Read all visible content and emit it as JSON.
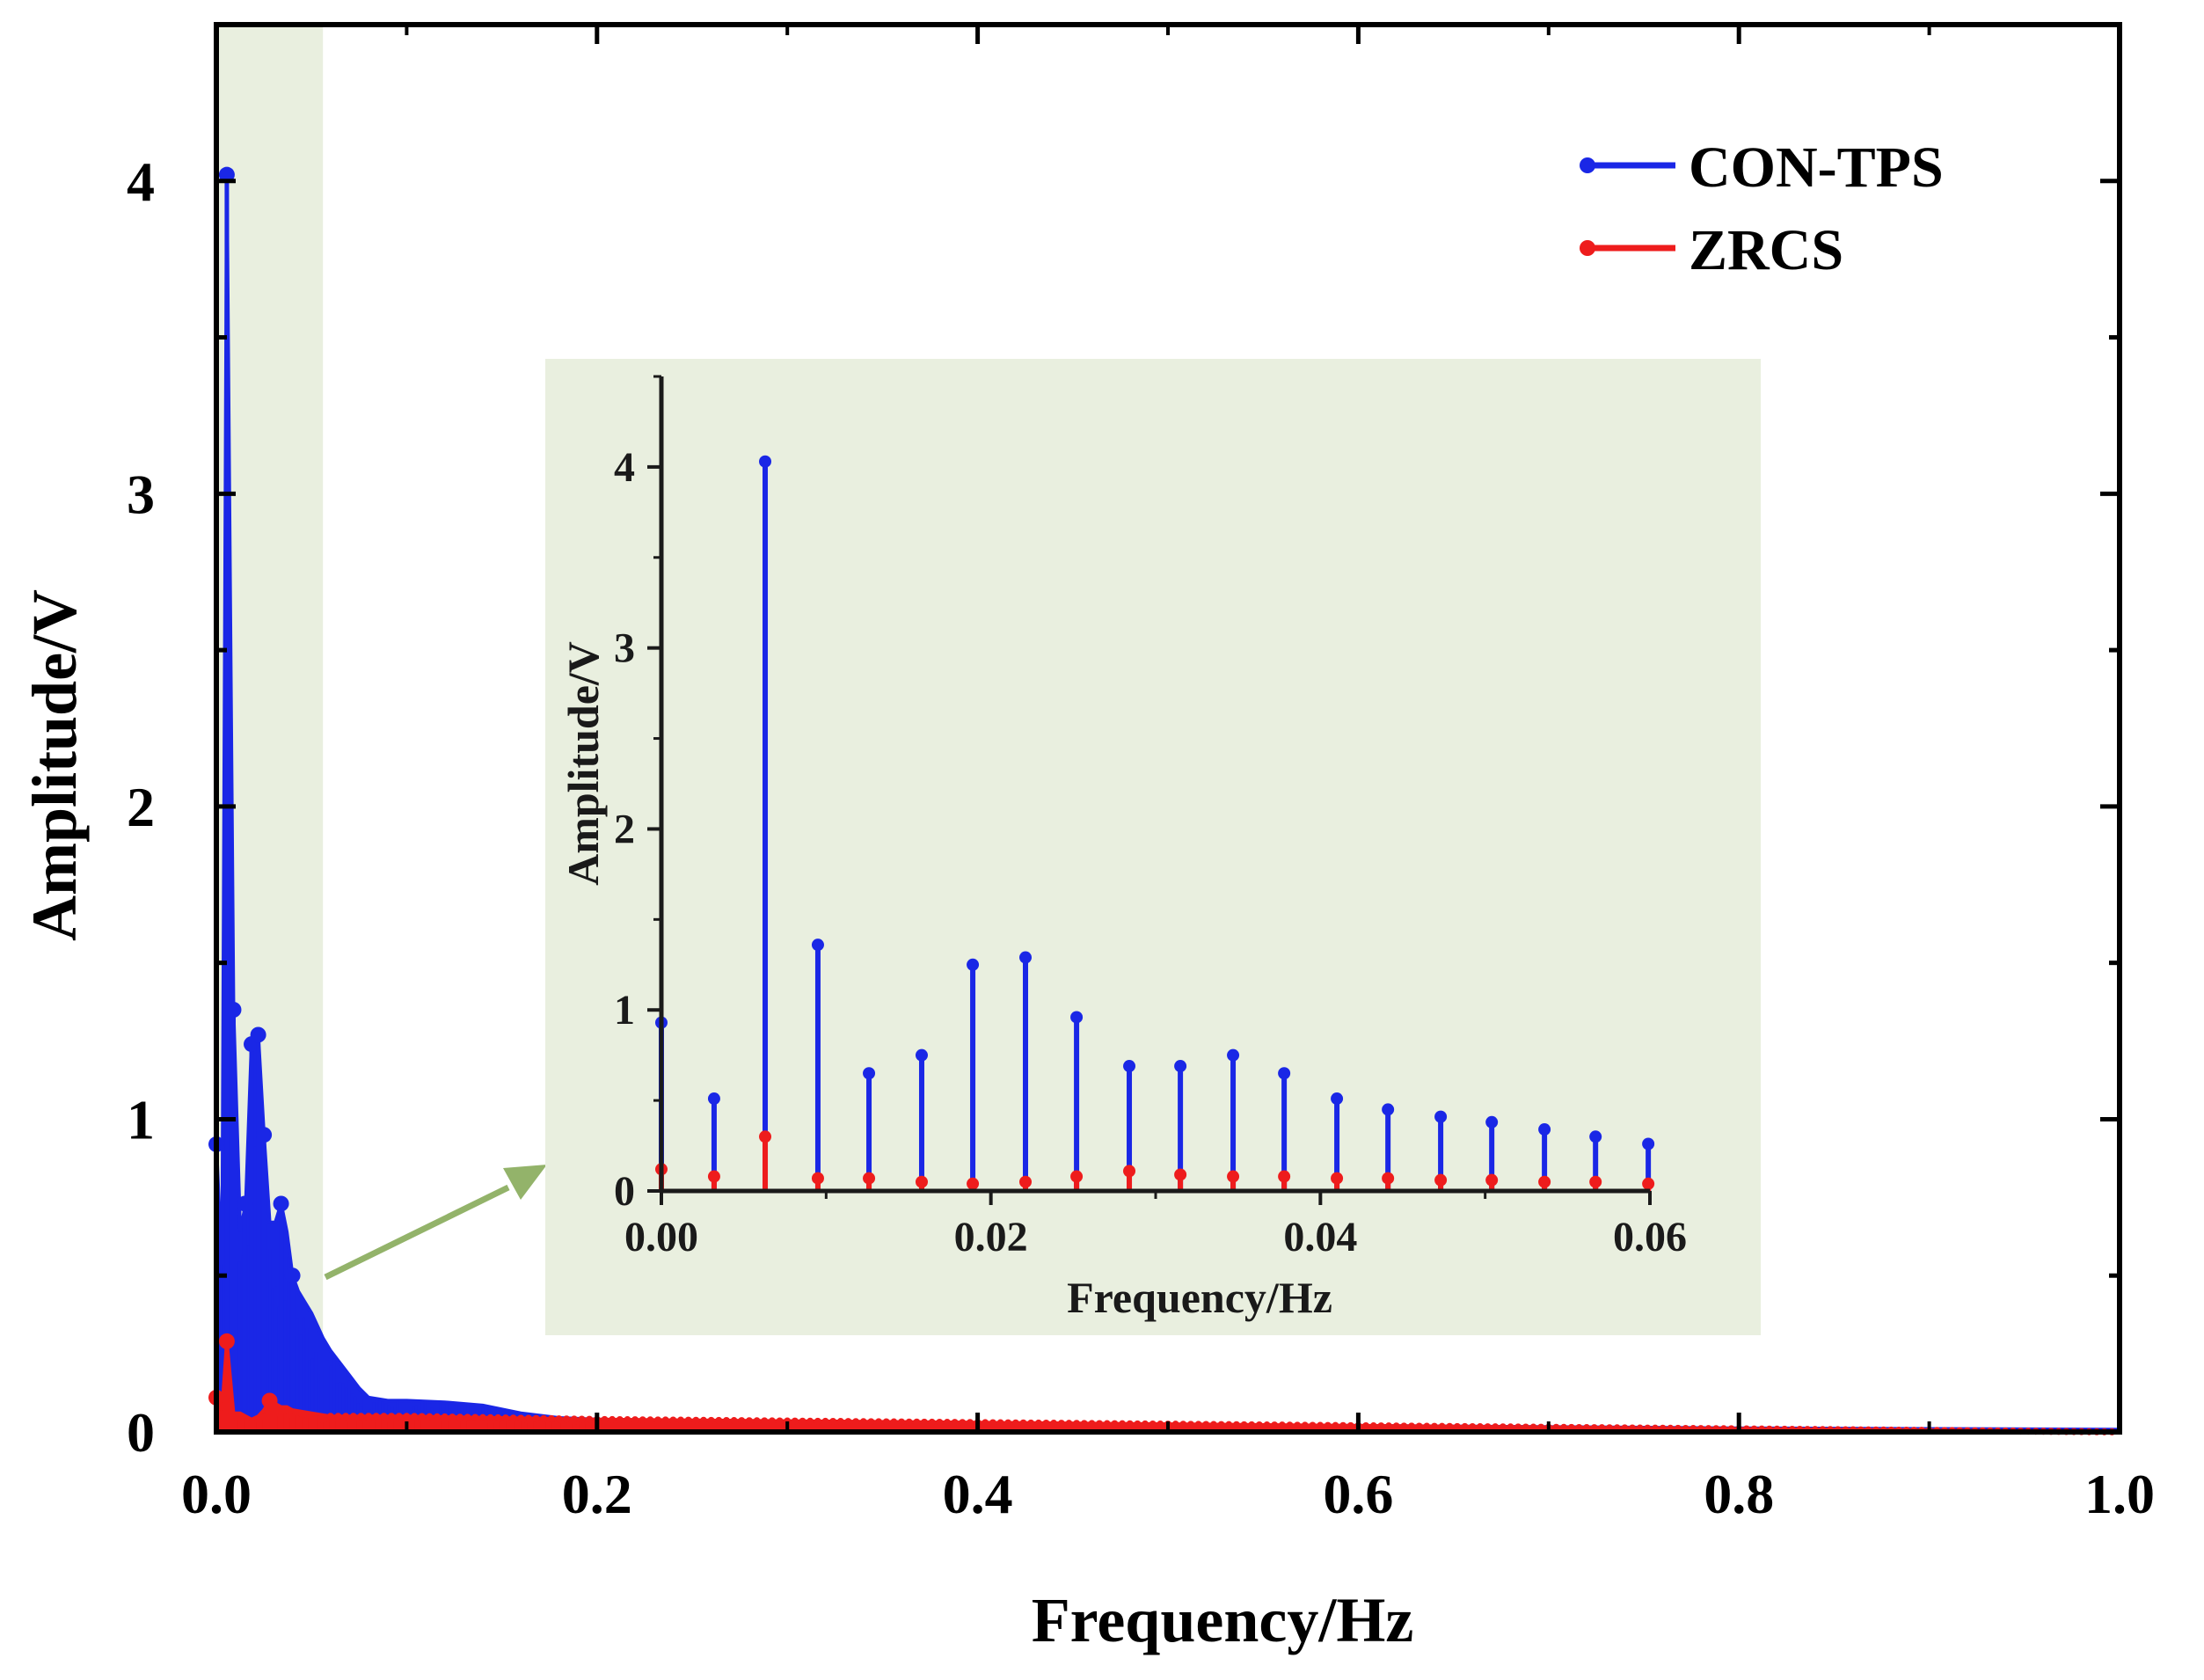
{
  "chart_data": {
    "main": {
      "type": "line",
      "xlabel": "Frequency/Hz",
      "ylabel": "Amplitude/V",
      "xlim": [
        0.0,
        1.0
      ],
      "ylim": [
        0,
        4.5
      ],
      "xticks": [
        0.0,
        0.2,
        0.4,
        0.6,
        0.8,
        1.0
      ],
      "xtick_labels": [
        "0.0",
        "0.2",
        "0.4",
        "0.6",
        "0.8",
        "1.0"
      ],
      "yticks": [
        0,
        1,
        2,
        3,
        4
      ],
      "ytick_labels": [
        "0",
        "1",
        "2",
        "3",
        "4"
      ],
      "highlight_range": [
        0.0,
        0.056
      ],
      "highlight_color": "#e9efdf",
      "legend_position": "top-right",
      "series": [
        {
          "name": "CON-TPS",
          "color": "#1a27e6",
          "envelope": [
            [
              0.0,
              0.92
            ],
            [
              0.003,
              0.5
            ],
            [
              0.0055,
              4.02
            ],
            [
              0.009,
              1.35
            ],
            [
              0.0125,
              0.64
            ],
            [
              0.0155,
              0.73
            ],
            [
              0.0185,
              1.24
            ],
            [
              0.022,
              1.27
            ],
            [
              0.025,
              0.95
            ],
            [
              0.028,
              0.67
            ],
            [
              0.031,
              0.67
            ],
            [
              0.034,
              0.73
            ],
            [
              0.037,
              0.64
            ],
            [
              0.04,
              0.5
            ],
            [
              0.043,
              0.45
            ],
            [
              0.046,
              0.42
            ],
            [
              0.05,
              0.38
            ],
            [
              0.053,
              0.34
            ],
            [
              0.056,
              0.3
            ],
            [
              0.06,
              0.26
            ],
            [
              0.065,
              0.22
            ],
            [
              0.07,
              0.18
            ],
            [
              0.075,
              0.14
            ],
            [
              0.08,
              0.11
            ],
            [
              0.09,
              0.1
            ],
            [
              0.1,
              0.1
            ],
            [
              0.12,
              0.095
            ],
            [
              0.14,
              0.085
            ],
            [
              0.16,
              0.06
            ],
            [
              0.18,
              0.045
            ],
            [
              0.2,
              0.04
            ],
            [
              0.3,
              0.03
            ],
            [
              0.4,
              0.025
            ],
            [
              0.6,
              0.02
            ],
            [
              0.8,
              0.012
            ],
            [
              1.0,
              0.008
            ]
          ],
          "peaks": [
            [
              0.0,
              0.92
            ],
            [
              0.0055,
              4.02
            ],
            [
              0.009,
              1.35
            ],
            [
              0.0185,
              1.24
            ],
            [
              0.022,
              1.27
            ],
            [
              0.025,
              0.95
            ],
            [
              0.015,
              0.73
            ],
            [
              0.034,
              0.73
            ],
            [
              0.04,
              0.5
            ]
          ]
        },
        {
          "name": "ZRCS",
          "color": "#ee1c1c",
          "envelope": [
            [
              0.0,
              0.11
            ],
            [
              0.003,
              0.07
            ],
            [
              0.0055,
              0.29
            ],
            [
              0.009,
              0.06
            ],
            [
              0.0125,
              0.06
            ],
            [
              0.0155,
              0.05
            ],
            [
              0.0185,
              0.04
            ],
            [
              0.022,
              0.05
            ],
            [
              0.025,
              0.07
            ],
            [
              0.028,
              0.1
            ],
            [
              0.031,
              0.09
            ],
            [
              0.034,
              0.08
            ],
            [
              0.037,
              0.08
            ],
            [
              0.04,
              0.07
            ],
            [
              0.05,
              0.06
            ],
            [
              0.06,
              0.05
            ],
            [
              0.08,
              0.05
            ],
            [
              0.1,
              0.05
            ],
            [
              0.2,
              0.04
            ],
            [
              0.4,
              0.03
            ],
            [
              0.6,
              0.02
            ],
            [
              0.8,
              0.01
            ],
            [
              1.0,
              0.0
            ]
          ],
          "peaks": [
            [
              0.0,
              0.11
            ],
            [
              0.0055,
              0.29
            ],
            [
              0.028,
              0.1
            ]
          ]
        }
      ]
    },
    "inset": {
      "type": "stem",
      "xlabel": "Frequency/Hz",
      "ylabel": "Amplitude/V",
      "xlim": [
        0.0,
        0.06
      ],
      "ylim": [
        0,
        4.5
      ],
      "xticks": [
        0.0,
        0.02,
        0.04,
        0.06
      ],
      "xtick_labels": [
        "0.00",
        "0.02",
        "0.04",
        "0.06"
      ],
      "yticks": [
        0,
        1,
        2,
        3,
        4
      ],
      "ytick_labels": [
        "0",
        "1",
        "2",
        "3",
        "4"
      ],
      "background": "#e9efdf",
      "x": [
        0.0,
        0.0032,
        0.0063,
        0.0095,
        0.0126,
        0.0158,
        0.0189,
        0.0221,
        0.0252,
        0.0284,
        0.0315,
        0.0347,
        0.0378,
        0.041,
        0.0441,
        0.0473,
        0.0504,
        0.0536,
        0.0567,
        0.0599
      ],
      "series": [
        {
          "name": "CON-TPS",
          "color": "#1a27e6",
          "values": [
            0.93,
            0.51,
            4.03,
            1.36,
            0.65,
            0.75,
            1.25,
            1.29,
            0.96,
            0.69,
            0.69,
            0.75,
            0.65,
            0.51,
            0.45,
            0.41,
            0.38,
            0.34,
            0.3,
            0.26
          ]
        },
        {
          "name": "ZRCS",
          "color": "#ee1c1c",
          "values": [
            0.12,
            0.08,
            0.3,
            0.07,
            0.07,
            0.05,
            0.04,
            0.05,
            0.08,
            0.11,
            0.09,
            0.08,
            0.08,
            0.07,
            0.07,
            0.06,
            0.06,
            0.05,
            0.05,
            0.04
          ]
        }
      ]
    }
  }
}
